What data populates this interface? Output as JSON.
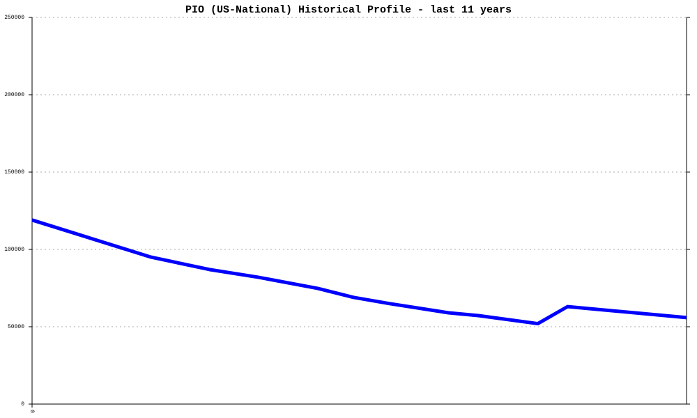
{
  "chart_data": {
    "type": "line",
    "title": "PIO (US-National) Historical Profile - last 11 years",
    "x": [
      0,
      2.0,
      2.98,
      3.8,
      4.8,
      5.4,
      6.0,
      7.0,
      7.5,
      8.5,
      9.0,
      11
    ],
    "series": [
      {
        "name": "PIO",
        "color": "#0000ff",
        "values": [
          119000,
          95000,
          87000,
          82000,
          74800,
          69000,
          65000,
          59000,
          57200,
          52000,
          63000,
          55900
        ]
      }
    ],
    "xlim": [
      0,
      11
    ],
    "xticks": [
      0
    ],
    "ylim": [
      0,
      250000
    ],
    "yticks": [
      0,
      50000,
      100000,
      150000,
      200000,
      250000
    ],
    "grid": true
  }
}
